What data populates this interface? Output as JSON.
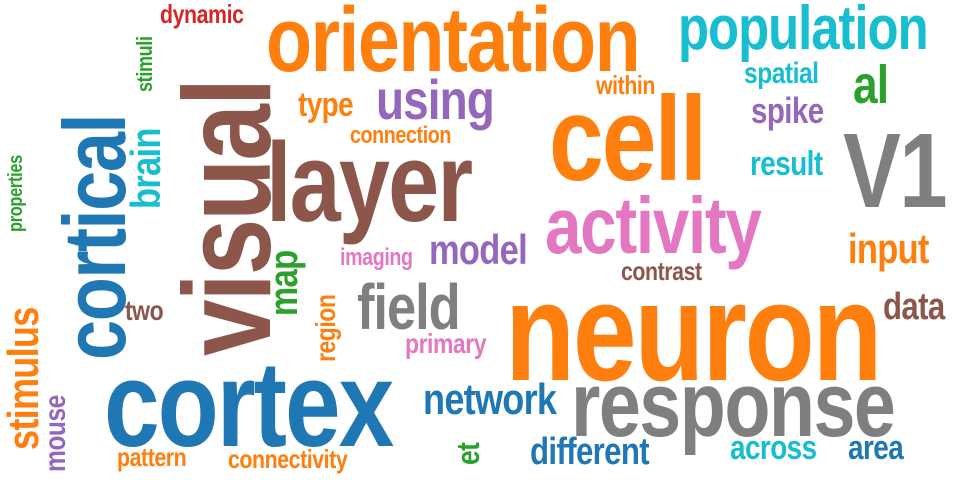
{
  "palette": {
    "blue": "#1f77b4",
    "orange": "#ff7f0e",
    "green": "#2ca02c",
    "red": "#d62728",
    "purple": "#9467bd",
    "brown": "#8c564b",
    "pink": "#e377c2",
    "gray": "#7f7f7f",
    "cyan": "#17becf"
  },
  "words": [
    {
      "text": "neuron",
      "color": "orange",
      "weight": 100
    },
    {
      "text": "cortex",
      "color": "blue",
      "weight": 86
    },
    {
      "text": "visual",
      "color": "brown",
      "weight": 82
    },
    {
      "text": "response",
      "color": "gray",
      "weight": 78
    },
    {
      "text": "cell",
      "color": "orange",
      "weight": 74
    },
    {
      "text": "layer",
      "color": "brown",
      "weight": 72
    },
    {
      "text": "orientation",
      "color": "orange",
      "weight": 70
    },
    {
      "text": "cortical",
      "color": "blue",
      "weight": 64
    },
    {
      "text": "V1",
      "color": "gray",
      "weight": 60
    },
    {
      "text": "activity",
      "color": "pink",
      "weight": 58
    },
    {
      "text": "population",
      "color": "cyan",
      "weight": 50
    },
    {
      "text": "field",
      "color": "gray",
      "weight": 42
    },
    {
      "text": "using",
      "color": "purple",
      "weight": 40
    },
    {
      "text": "network",
      "color": "blue",
      "weight": 36
    },
    {
      "text": "stimulus",
      "color": "orange",
      "weight": 34
    },
    {
      "text": "different",
      "color": "blue",
      "weight": 30
    },
    {
      "text": "al",
      "color": "green",
      "weight": 30
    },
    {
      "text": "model",
      "color": "purple",
      "weight": 30
    },
    {
      "text": "brain",
      "color": "cyan",
      "weight": 30
    },
    {
      "text": "across",
      "color": "cyan",
      "weight": 28
    },
    {
      "text": "area",
      "color": "blue",
      "weight": 28
    },
    {
      "text": "input",
      "color": "orange",
      "weight": 28
    },
    {
      "text": "data",
      "color": "brown",
      "weight": 28
    },
    {
      "text": "spike",
      "color": "purple",
      "weight": 26
    },
    {
      "text": "type",
      "color": "orange",
      "weight": 26
    },
    {
      "text": "result",
      "color": "cyan",
      "weight": 26
    },
    {
      "text": "spatial",
      "color": "cyan",
      "weight": 24
    },
    {
      "text": "map",
      "color": "green",
      "weight": 24
    },
    {
      "text": "connectivity",
      "color": "orange",
      "weight": 24
    },
    {
      "text": "mouse",
      "color": "purple",
      "weight": 24
    },
    {
      "text": "pattern",
      "color": "orange",
      "weight": 22
    },
    {
      "text": "primary",
      "color": "pink",
      "weight": 22
    },
    {
      "text": "contrast",
      "color": "brown",
      "weight": 22
    },
    {
      "text": "et",
      "color": "green",
      "weight": 22
    },
    {
      "text": "two",
      "color": "brown",
      "weight": 22
    },
    {
      "text": "region",
      "color": "orange",
      "weight": 20
    },
    {
      "text": "within",
      "color": "orange",
      "weight": 20
    },
    {
      "text": "connection",
      "color": "orange",
      "weight": 20
    },
    {
      "text": "dynamic",
      "color": "red",
      "weight": 20
    },
    {
      "text": "imaging",
      "color": "pink",
      "weight": 18
    },
    {
      "text": "stimuli",
      "color": "green",
      "weight": 18
    },
    {
      "text": "properties",
      "color": "green",
      "weight": 16
    }
  ]
}
